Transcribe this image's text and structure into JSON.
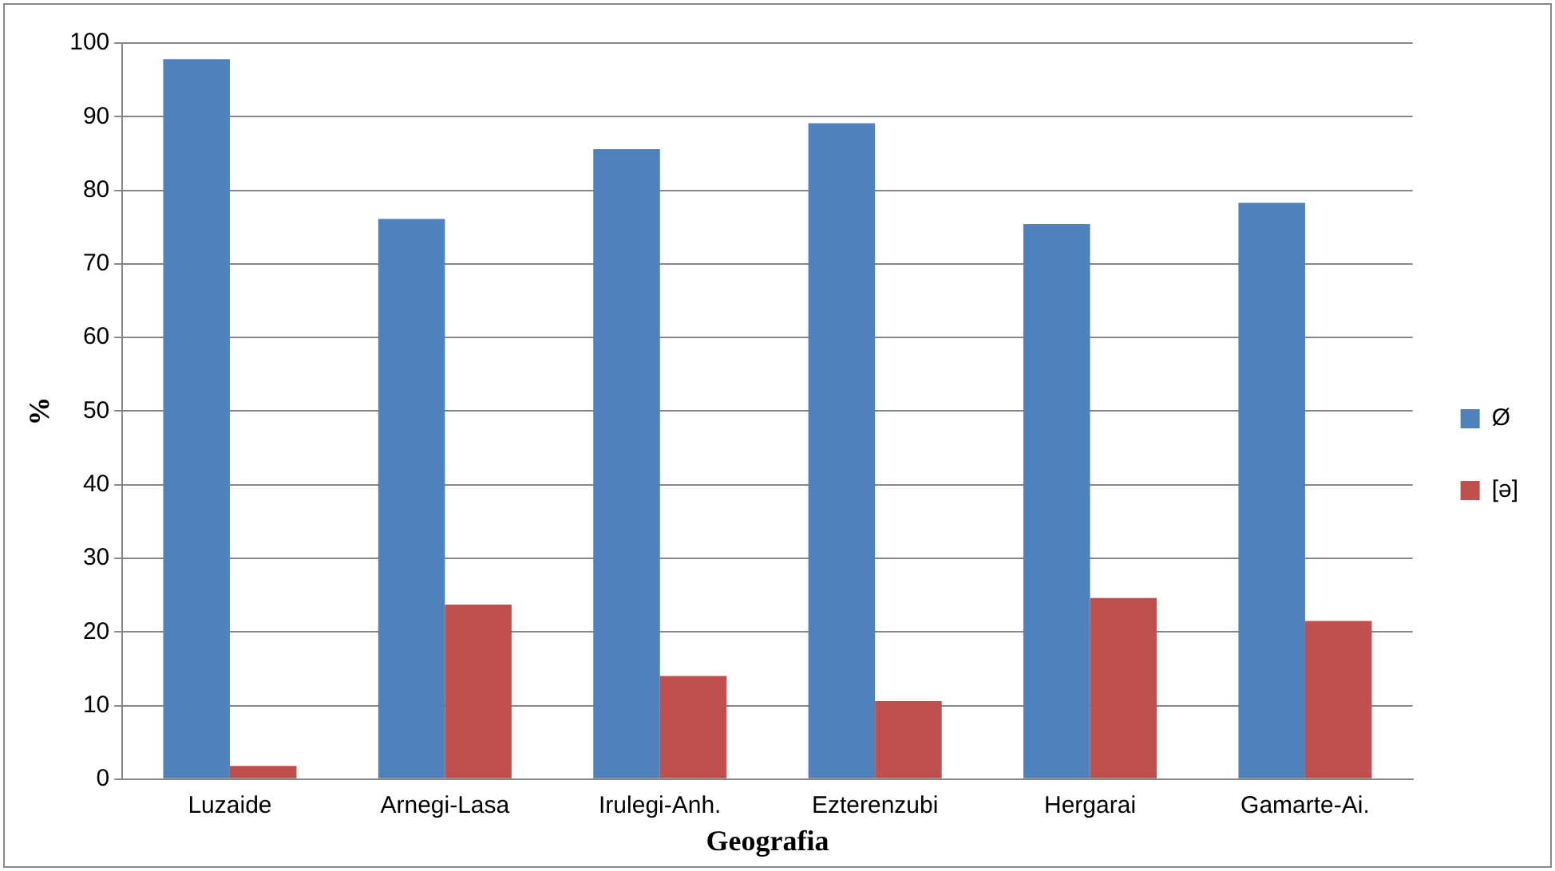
{
  "chart_data": {
    "type": "bar",
    "xlabel": "Geografia",
    "ylabel": "%",
    "categories": [
      "Luzaide",
      "Arnegi-Lasa",
      "Irulegi-Anh.",
      "Ezterenzubi",
      "Hergarai",
      "Gamarte-Ai."
    ],
    "series": [
      {
        "name": "Ø",
        "color": "#4f81bd",
        "values": [
          97.8,
          76.1,
          85.6,
          89.1,
          75.4,
          78.3
        ]
      },
      {
        "name": "[ə]",
        "color": "#c0504d",
        "values": [
          1.8,
          23.7,
          14.0,
          10.6,
          24.6,
          21.5
        ]
      }
    ],
    "ylim": [
      0,
      100
    ],
    "yticks": [
      0,
      10,
      20,
      30,
      40,
      50,
      60,
      70,
      80,
      90,
      100
    ],
    "grid": "y",
    "legend": "right"
  }
}
